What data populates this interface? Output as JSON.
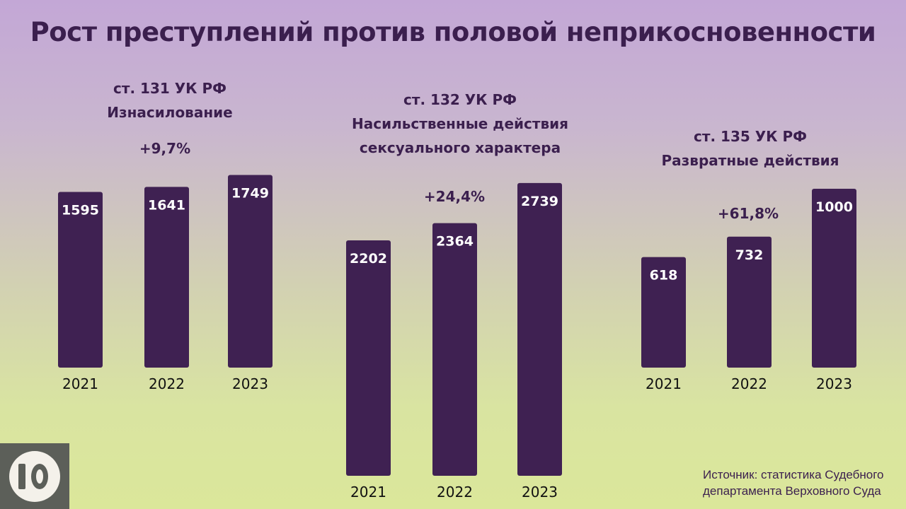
{
  "title": "Рост преступлений против половой неприкосновенности",
  "source": {
    "line1": "Источник: статистика Судебного",
    "line2": "департамента Верховного Суда"
  },
  "colors": {
    "bar": "#3f2152",
    "text": "#3b1f4e",
    "logo_bg": "#5c5f59"
  },
  "logo": {
    "icon": "ten-logo-icon"
  },
  "chart_data": [
    {
      "type": "bar",
      "title": [
        "ст. 131 УК РФ",
        "Изнасилование"
      ],
      "annotation": "+9,7%",
      "categories": [
        "2021",
        "2022",
        "2023"
      ],
      "values": [
        1595,
        1641,
        1749
      ]
    },
    {
      "type": "bar",
      "title": [
        "ст. 132 УК РФ",
        "Насильственные действия",
        "сексуального характера"
      ],
      "annotation": "+24,4%",
      "categories": [
        "2021",
        "2022",
        "2023"
      ],
      "values": [
        2202,
        2364,
        2739
      ]
    },
    {
      "type": "bar",
      "title": [
        "ст. 135 УК РФ",
        "Развратные действия"
      ],
      "annotation": "+61,8%",
      "categories": [
        "2021",
        "2022",
        "2023"
      ],
      "values": [
        618,
        732,
        1000
      ]
    }
  ]
}
